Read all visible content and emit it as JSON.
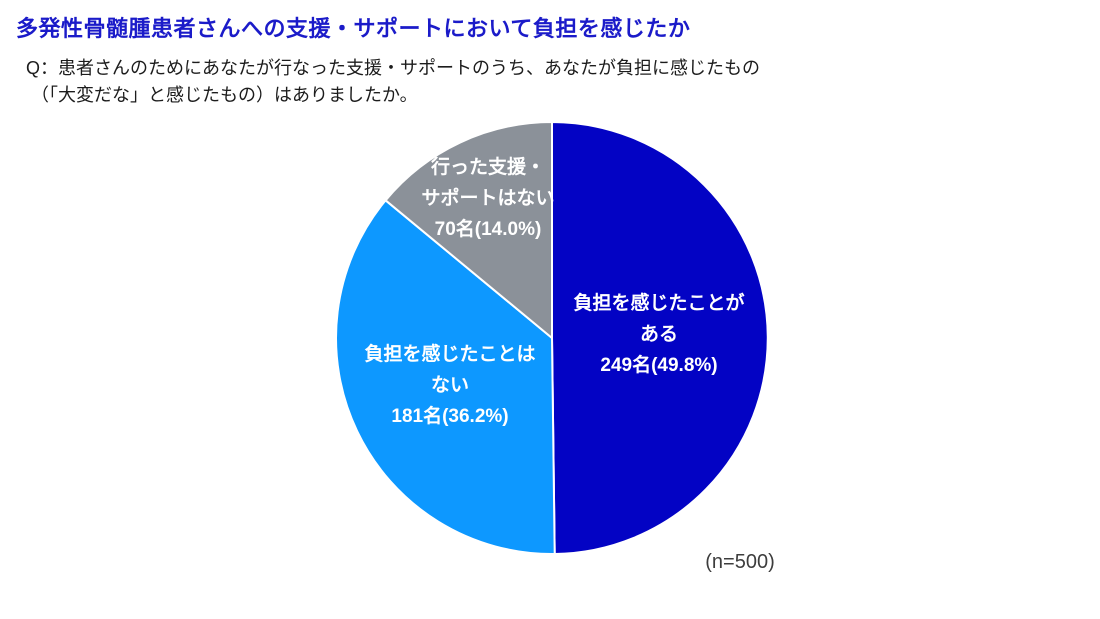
{
  "header": {
    "title": "多発性骨髄腫患者さんへの支援・サポートにおいて負担を感じたか",
    "question_line1": "Q：患者さんのためにあなたが行なった支援・サポートのうち、あなたが負担に感じたもの",
    "question_line2": "（「大変だな」と感じたもの）はありましたか。"
  },
  "chart_data": {
    "type": "pie",
    "title": "多発性骨髄腫患者さんへの支援・サポートにおいて負担を感じたか",
    "total": 500,
    "sample_size_label": "(n=500)",
    "start_angle": "top",
    "direction": "clockwise",
    "label_text_color": "#ffffff",
    "slices": [
      {
        "id": "burden-yes",
        "label": "負担を感じたことがある",
        "count": 249,
        "percent": 49.8,
        "color": "#0303c4",
        "label_lines": [
          "負担を感じたことが",
          "ある",
          "249名(49.8%)"
        ]
      },
      {
        "id": "burden-no",
        "label": "負担を感じたことはない",
        "count": 181,
        "percent": 36.2,
        "color": "#0d98ff",
        "label_lines": [
          "負担を感じたことは",
          "ない",
          "181名(36.2%)"
        ]
      },
      {
        "id": "no-support",
        "label": "行った支援・サポートはない",
        "count": 70,
        "percent": 14.0,
        "color": "#8b9199",
        "label_lines": [
          "行った支援・",
          "サポートはない",
          "70名(14.0%)"
        ]
      }
    ]
  }
}
